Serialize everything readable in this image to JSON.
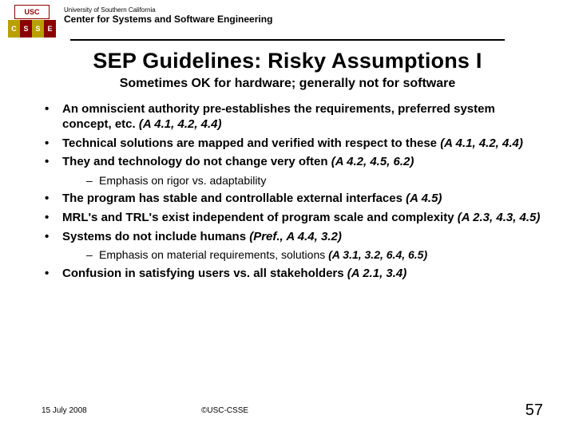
{
  "header": {
    "usc_badge": "USC",
    "university": "University of Southern California",
    "center": "Center for Systems and Software Engineering"
  },
  "title": "SEP Guidelines: Risky Assumptions I",
  "subtitle": "Sometimes OK for hardware; generally not for software",
  "bullets": [
    {
      "text": "An omniscient authority pre-establishes the requirements, preferred system concept, etc.",
      "ref": "(A 4.1, 4.2, 4.4)"
    },
    {
      "text": "Technical solutions are mapped and verified with respect to these",
      "ref": "(A 4.1, 4.2, 4.4)"
    },
    {
      "text": "They and technology do not change very often",
      "ref": "(A 4.2, 4.5, 6.2)",
      "sub": [
        {
          "text": "Emphasis on rigor vs. adaptability",
          "ref": ""
        }
      ]
    },
    {
      "text": "The program has stable and controllable external interfaces",
      "ref": "(A 4.5)"
    },
    {
      "text": "MRL's and TRL's exist independent of program scale and complexity",
      "ref": "(A 2.3, 4.3, 4.5)"
    },
    {
      "text": "Systems do not include humans",
      "ref": "(Pref., A 4.4, 3.2)",
      "sub": [
        {
          "text": "Emphasis on material requirements, solutions",
          "ref": "(A 3.1, 3.2, 6.4, 6.5)"
        }
      ]
    },
    {
      "text": "Confusion in satisfying users vs. all stakeholders",
      "ref": "(A 2.1, 3.4)"
    }
  ],
  "footer": {
    "date": "15 July 2008",
    "copyright": "©USC-CSSE",
    "page": "57"
  },
  "colors": {
    "text": "#000000",
    "usc_red": "#8b0000",
    "usc_gold": "#b8a000",
    "background": "#ffffff"
  }
}
